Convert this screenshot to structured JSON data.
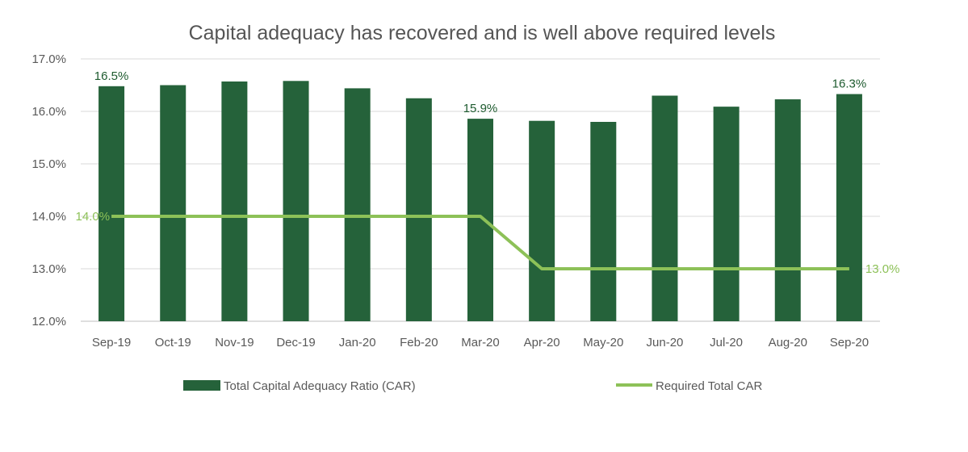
{
  "chart_data": {
    "type": "bar",
    "title": "Capital adequacy has recovered and is well above required levels",
    "categories": [
      "Sep-19",
      "Oct-19",
      "Nov-19",
      "Dec-19",
      "Jan-20",
      "Feb-20",
      "Mar-20",
      "Apr-20",
      "May-20",
      "Jun-20",
      "Jul-20",
      "Aug-20",
      "Sep-20"
    ],
    "series": [
      {
        "name": "Total Capital Adequacy Ratio (CAR)",
        "kind": "bar",
        "color": "#25623a",
        "values": [
          16.48,
          16.5,
          16.57,
          16.58,
          16.44,
          16.25,
          15.86,
          15.82,
          15.8,
          16.3,
          16.09,
          16.23,
          16.33
        ],
        "data_labels": {
          "0": "16.5%",
          "6": "15.9%",
          "12": "16.3%"
        }
      },
      {
        "name": "Required Total CAR",
        "kind": "line",
        "color": "#8dc158",
        "values": [
          14.0,
          14.0,
          14.0,
          14.0,
          14.0,
          14.0,
          14.0,
          13.0,
          13.0,
          13.0,
          13.0,
          13.0,
          13.0
        ],
        "data_labels": {
          "0": "14.0%",
          "12": "13.0%"
        }
      }
    ],
    "ylim": [
      12.0,
      17.0
    ],
    "yticks": [
      "12.0%",
      "13.0%",
      "14.0%",
      "15.0%",
      "16.0%",
      "17.0%"
    ],
    "grid": true,
    "legend_position": "bottom"
  }
}
